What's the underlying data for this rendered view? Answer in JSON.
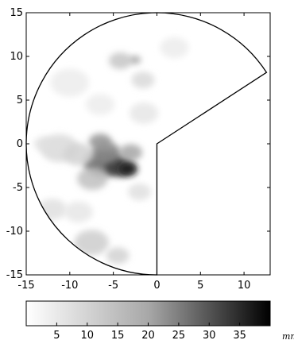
{
  "chart_data": {
    "type": "heatmap",
    "title": "",
    "xlabel": "",
    "ylabel": "",
    "xlim": [
      -15,
      13
    ],
    "ylim": [
      -15,
      15
    ],
    "x_ticks": [
      -15,
      -10,
      -5,
      0,
      5,
      10
    ],
    "y_ticks": [
      15,
      10,
      5,
      0,
      -5,
      -10,
      -15
    ],
    "grid": false,
    "scan_radius": 15,
    "blanked_sector": {
      "from_angle_deg": -90,
      "to_angle_deg": 33
    },
    "colorbar": {
      "ticks": [
        5,
        10,
        15,
        20,
        25,
        30,
        35
      ],
      "range": [
        0,
        40
      ],
      "unit_label": "mm /hr",
      "colormap": "grayscale white-to-black"
    },
    "echo_cells": [
      {
        "x": -6.2,
        "y": -2.2,
        "radius": 2.0,
        "value": 25
      },
      {
        "x": -4.3,
        "y": -2.6,
        "radius": 1.5,
        "value": 31
      },
      {
        "x": -3.3,
        "y": -2.9,
        "radius": 1.0,
        "value": 36
      },
      {
        "x": -5.8,
        "y": -1.0,
        "radius": 1.5,
        "value": 19
      },
      {
        "x": -6.5,
        "y": 0.2,
        "radius": 1.2,
        "value": 17
      },
      {
        "x": -3.0,
        "y": -1.0,
        "radius": 1.2,
        "value": 14
      },
      {
        "x": -7.4,
        "y": -4.0,
        "radius": 1.6,
        "value": 10
      },
      {
        "x": -11.2,
        "y": -0.5,
        "radius": 2.0,
        "value": 6
      },
      {
        "x": -9.0,
        "y": -1.2,
        "radius": 1.6,
        "value": 7
      },
      {
        "x": -13.0,
        "y": 0.0,
        "radius": 1.0,
        "value": 5
      },
      {
        "x": -4.2,
        "y": 9.5,
        "radius": 1.2,
        "value": 9
      },
      {
        "x": -2.5,
        "y": 9.6,
        "radius": 0.6,
        "value": 14
      },
      {
        "x": -1.6,
        "y": 7.3,
        "radius": 1.2,
        "value": 6
      },
      {
        "x": -10.0,
        "y": 7.0,
        "radius": 2.0,
        "value": 3
      },
      {
        "x": -7.5,
        "y": -11.3,
        "radius": 1.8,
        "value": 8
      },
      {
        "x": -4.5,
        "y": -12.8,
        "radius": 1.2,
        "value": 7
      },
      {
        "x": -12.0,
        "y": -7.5,
        "radius": 1.5,
        "value": 5
      },
      {
        "x": -9.0,
        "y": -7.8,
        "radius": 1.5,
        "value": 4
      },
      {
        "x": -2.0,
        "y": -5.5,
        "radius": 1.2,
        "value": 5
      },
      {
        "x": -13.2,
        "y": -9.0,
        "radius": 0.8,
        "value": 7
      },
      {
        "x": -1.5,
        "y": 3.5,
        "radius": 1.5,
        "value": 4
      },
      {
        "x": 2.0,
        "y": 11.0,
        "radius": 1.5,
        "value": 3
      },
      {
        "x": -6.5,
        "y": 4.5,
        "radius": 1.5,
        "value": 3
      }
    ]
  }
}
